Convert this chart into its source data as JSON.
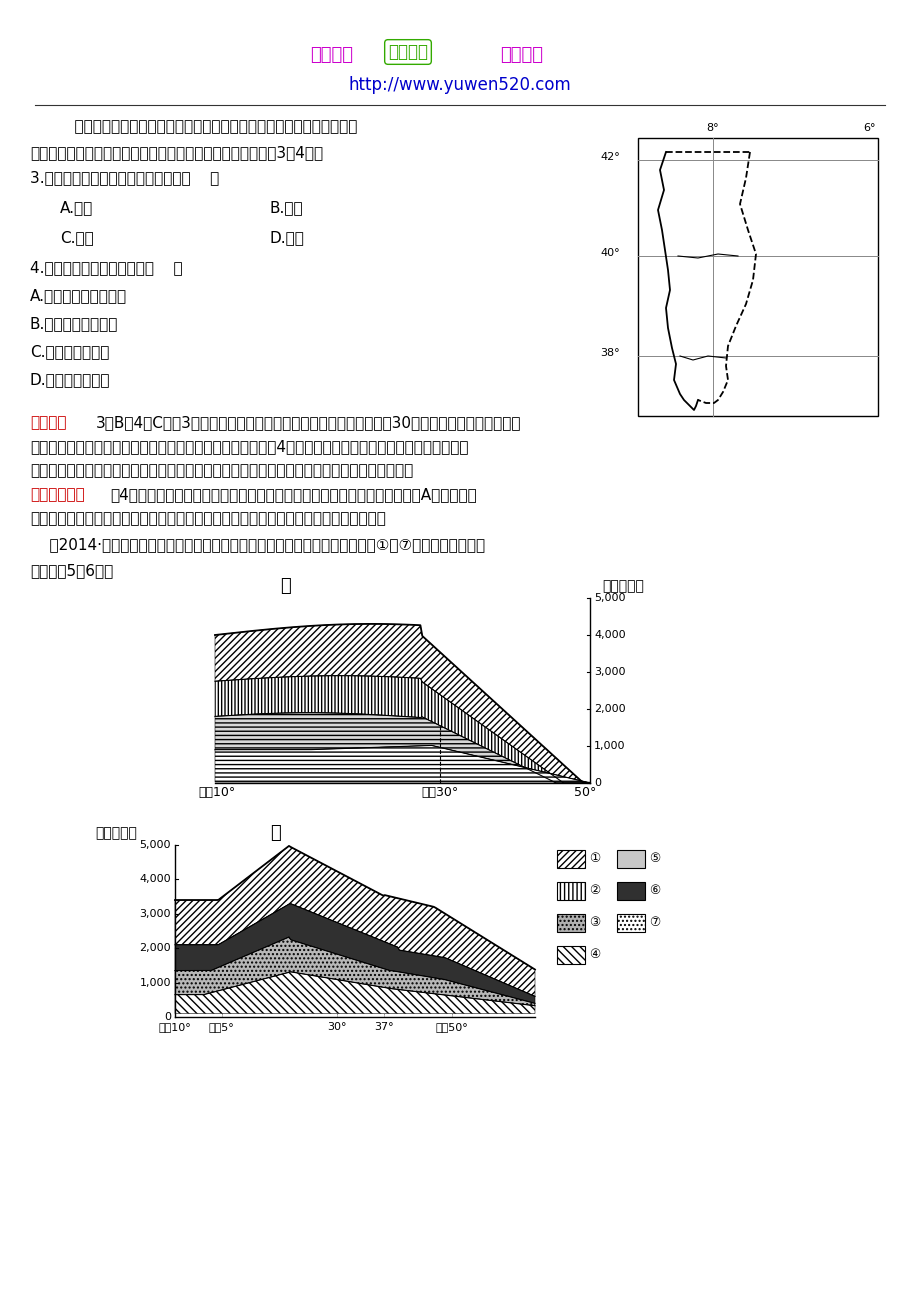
{
  "page_bg": "#ffffff",
  "header_logo_text": "该资料由",
  "header_logo_text2": "友情提供",
  "header_url": "http://www.yuwen520.com",
  "header_logo_company": "语文公社",
  "line1": "    栓皮栎的树皮在树干水分较少时采剥，风干后作为制造软木塞的材料。",
  "line2": "右图是某国示意图，栓皮栎主要生长在该国的南部地区。回答3、4题。",
  "q3": "3.该国采剥栓皮栎树皮的最佳季节是（    ）",
  "q3a": "A.春季",
  "q3b": "B.夏季",
  "q3c": "C.秋季",
  "q3d": "D.冬季",
  "q4": "4.该国南部沿海地区的植被（    ）",
  "q4a": "A.为亚热带常绿阔叶林",
  "q4b": "B.为温带落叶阔叶林",
  "q4c": "C.具有耐旱的特征",
  "q4d": "D.具有耐寒的特征",
  "jiepou_label": "【解析】",
  "jiepou_text1": "3选B，4选C。第3题，该国位于大陆的西岸，其南部所处纬度为北纬30多度，为地中海气候，夏季",
  "jiepou_text2": "受副热带高气压带控制，降水少，适宜栓皮栎树皮的采剥。第4题，该国南部沿海地区为地中海气候，植被为",
  "jiepou_text3": "亚热带常绿硬叶林，为适应夏季炎热干燥的气候特征，植被树叶表层有蜡质，具有耐旱的特征。",
  "wuqu_label": "【误区警示】",
  "wuqu_text1": "第4题，分不清亚热带常绿阔叶林和亚热带常绿硬叶林的地区分布差别而错选A项。亚热带",
  "wuqu_text2": "常绿阔叶林主要分布于亚热带季风气候区，亚热带常绿硬叶林主要分布于地中海气候区。",
  "context_text1": "    （2014·潮州二模）甲、乙两图分别代表安第斯山脉东西两坡上的植被分布，①～⑦代表不同的植被。",
  "context_text2": "读图回答5、6题。",
  "chart_jia_title": "甲",
  "chart_jia_ylabel": "海拔（米）",
  "chart_yi_title": "乙",
  "chart_yi_ylabel": "海拔（米）"
}
